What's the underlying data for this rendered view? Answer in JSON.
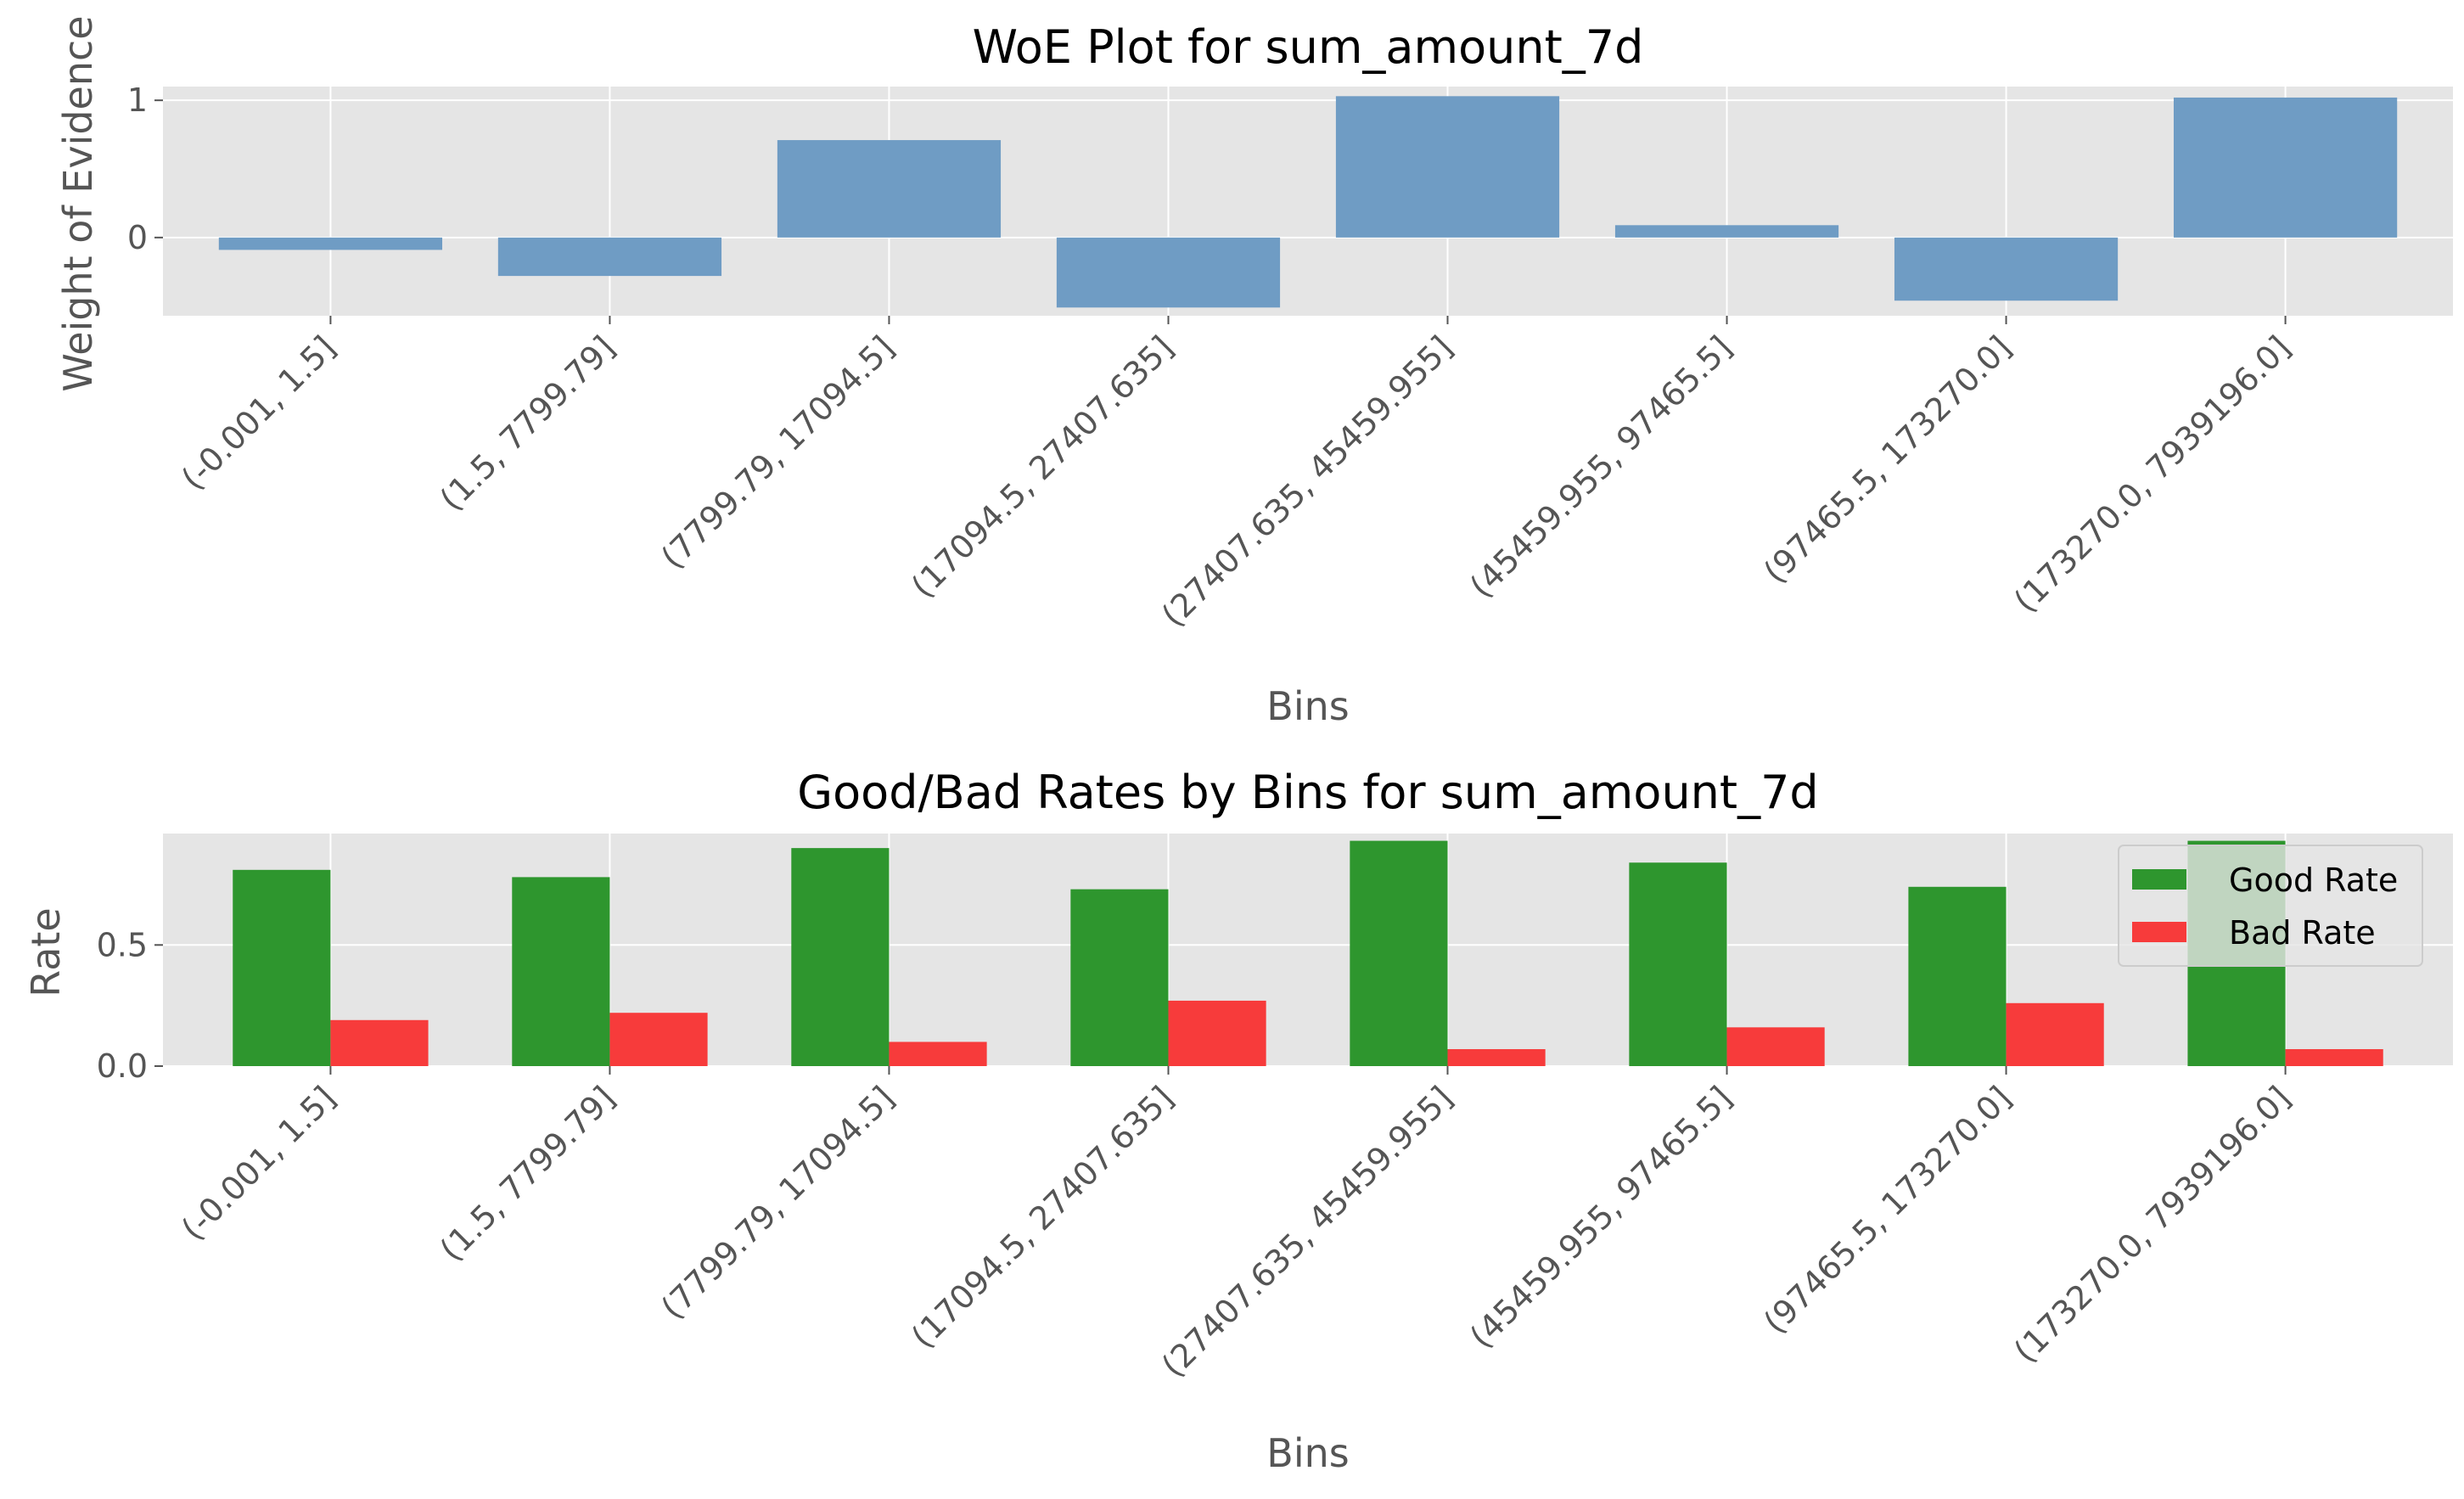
{
  "chart_data": [
    {
      "type": "bar",
      "title": "WoE Plot for sum_amount_7d",
      "xlabel": "Bins",
      "ylabel": "Weight of Evidence",
      "categories": [
        "(-0.001, 1.5]",
        "(1.5, 7799.79]",
        "(7799.79, 17094.5]",
        "(17094.5, 27407.635]",
        "(27407.635, 45459.955]",
        "(45459.955, 97465.5]",
        "(97465.5, 173270.0]",
        "(173270.0, 7939196.0]"
      ],
      "values": [
        -0.09,
        -0.28,
        0.71,
        -0.51,
        1.03,
        0.09,
        -0.46,
        1.02
      ],
      "ylim": [
        -0.57,
        1.1
      ],
      "yticks": [
        0,
        1
      ],
      "ytick_labels": [
        "0",
        "1"
      ],
      "grid": true,
      "color": "#6f9cc4"
    },
    {
      "type": "bar",
      "title": "Good/Bad Rates by Bins for sum_amount_7d",
      "xlabel": "Bins",
      "ylabel": "Rate",
      "categories": [
        "(-0.001, 1.5]",
        "(1.5, 7799.79]",
        "(7799.79, 17094.5]",
        "(17094.5, 27407.635]",
        "(27407.635, 45459.955]",
        "(45459.955, 97465.5]",
        "(97465.5, 173270.0]",
        "(173270.0, 7939196.0]"
      ],
      "series": [
        {
          "name": "Good Rate",
          "values": [
            0.81,
            0.78,
            0.9,
            0.73,
            0.93,
            0.84,
            0.74,
            0.93
          ],
          "color": "#2e962e"
        },
        {
          "name": "Bad Rate",
          "values": [
            0.19,
            0.22,
            0.1,
            0.27,
            0.07,
            0.16,
            0.26,
            0.07
          ],
          "color": "#f73b3b"
        }
      ],
      "ylim": [
        0,
        0.96
      ],
      "yticks": [
        0,
        0.5
      ],
      "ytick_labels": [
        "0.0",
        "0.5"
      ],
      "grid": true,
      "legend": "top-right"
    }
  ]
}
